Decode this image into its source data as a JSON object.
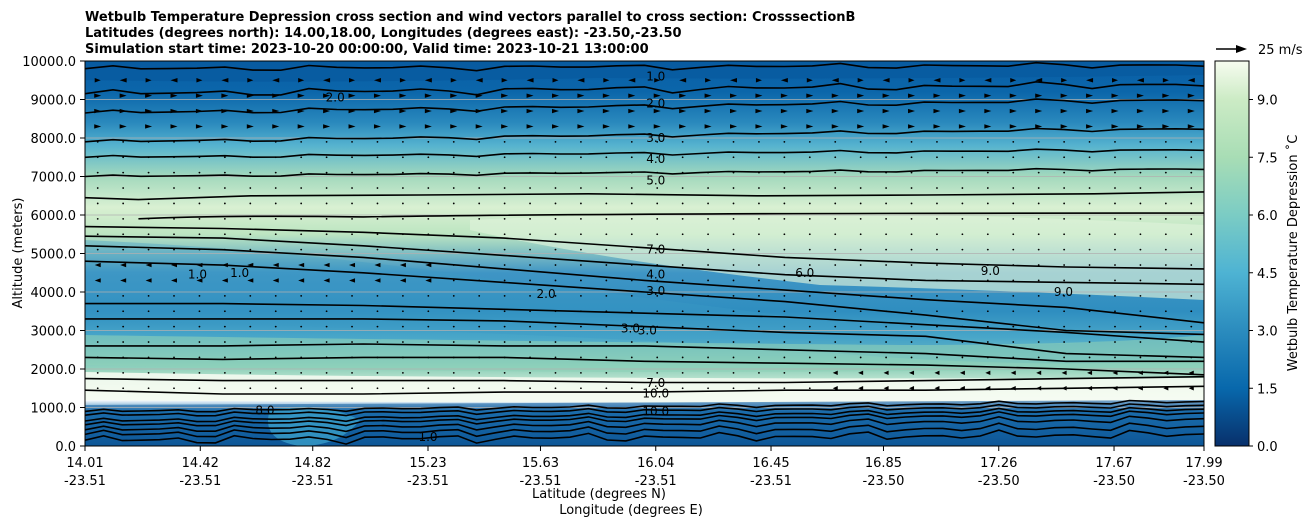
{
  "chart_data": {
    "type": "contourf",
    "title": [
      "Wetbulb Temperature Depression cross section and wind vectors parallel to cross section: CrosssectionB",
      "Latitudes (degrees north): 14.00,18.00, Longitudes (degrees east): -23.50,-23.50",
      "Simulation start time: 2023-10-20 00:00:00, Valid time: 2023-10-21 13:00:00"
    ],
    "xlabel": "Latitude (degrees N)",
    "xlabel2": "Longitude (degrees E)",
    "ylabel": "Altitude (meters)",
    "ylim": [
      0,
      10000
    ],
    "yticks": [
      "0.0",
      "1000.0",
      "2000.0",
      "3000.0",
      "4000.0",
      "5000.0",
      "6000.0",
      "7000.0",
      "8000.0",
      "9000.0",
      "10000.0"
    ],
    "xlim": [
      14.01,
      17.99
    ],
    "xticks": [
      {
        "lat": "14.01",
        "lon": "-23.51"
      },
      {
        "lat": "14.42",
        "lon": "-23.51"
      },
      {
        "lat": "14.82",
        "lon": "-23.51"
      },
      {
        "lat": "15.23",
        "lon": "-23.51"
      },
      {
        "lat": "15.63",
        "lon": "-23.51"
      },
      {
        "lat": "16.04",
        "lon": "-23.51"
      },
      {
        "lat": "16.45",
        "lon": "-23.51"
      },
      {
        "lat": "16.85",
        "lon": "-23.50"
      },
      {
        "lat": "17.26",
        "lon": "-23.50"
      },
      {
        "lat": "17.67",
        "lon": "-23.50"
      },
      {
        "lat": "17.99",
        "lon": "-23.50"
      }
    ],
    "grid": "horizontal",
    "colorbar": {
      "label": "Wetbulb Temperature Depression ˚C",
      "range": [
        0,
        10
      ],
      "ticks": [
        "0.0",
        "1.5",
        "3.0",
        "4.5",
        "6.0",
        "7.5",
        "9.0"
      ],
      "colormap": "GnBu_r"
    },
    "quiver_key": "25 m/s",
    "contour_labels": [
      {
        "text": "1.0",
        "x": 16.04,
        "y": 9600
      },
      {
        "text": "2.0",
        "x": 16.04,
        "y": 8900
      },
      {
        "text": "3.0",
        "x": 16.04,
        "y": 8000
      },
      {
        "text": "4.0",
        "x": 16.04,
        "y": 7450
      },
      {
        "text": "5.0",
        "x": 16.04,
        "y": 6900
      },
      {
        "text": "7.0",
        "x": 16.04,
        "y": 5100
      },
      {
        "text": "4.0",
        "x": 16.04,
        "y": 4450
      },
      {
        "text": "3.0",
        "x": 16.04,
        "y": 4030
      },
      {
        "text": "6.0",
        "x": 16.57,
        "y": 4500
      },
      {
        "text": "3.0",
        "x": 15.95,
        "y": 3050
      },
      {
        "text": "3.0",
        "x": 16.01,
        "y": 3000
      },
      {
        "text": "2.0",
        "x": 15.65,
        "y": 3950
      },
      {
        "text": "9.0",
        "x": 17.23,
        "y": 4550
      },
      {
        "text": "9.0",
        "x": 17.49,
        "y": 4000
      },
      {
        "text": "1.0",
        "x": 14.41,
        "y": 4450
      },
      {
        "text": "1.0",
        "x": 14.56,
        "y": 4500
      },
      {
        "text": "2.0",
        "x": 14.9,
        "y": 9050
      },
      {
        "text": "7.0",
        "x": 16.04,
        "y": 1630
      },
      {
        "text": "10.0",
        "x": 16.04,
        "y": 1360
      },
      {
        "text": "10.0",
        "x": 16.04,
        "y": 890
      },
      {
        "text": "8.0",
        "x": 14.65,
        "y": 920
      },
      {
        "text": "1.0",
        "x": 15.23,
        "y": 230
      }
    ],
    "contour_levels": [
      1,
      2,
      3,
      4,
      5,
      6,
      7,
      8,
      9,
      10
    ]
  }
}
